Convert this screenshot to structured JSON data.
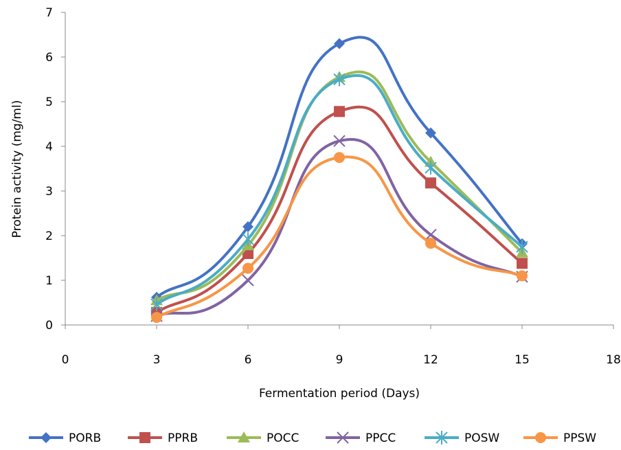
{
  "chart_data": {
    "type": "line",
    "title": "",
    "xlabel": "Fermentation period (Days)",
    "ylabel": "Protein activity (mg/ml)",
    "xlim": [
      0,
      18
    ],
    "ylim": [
      0,
      7
    ],
    "xticks": [
      0,
      3,
      6,
      9,
      12,
      15,
      18
    ],
    "yticks": [
      0,
      1,
      2,
      3,
      4,
      5,
      6,
      7
    ],
    "grid": false,
    "legend_position": "bottom",
    "smooth": true,
    "x": [
      3,
      6,
      9,
      12,
      15
    ],
    "series": [
      {
        "name": "PORB",
        "color": "#4472c4",
        "marker": "diamond",
        "values": [
          0.62,
          2.2,
          6.3,
          4.3,
          1.82
        ]
      },
      {
        "name": "PPRB",
        "color": "#c0504d",
        "marker": "square",
        "values": [
          0.28,
          1.6,
          4.78,
          3.18,
          1.38
        ]
      },
      {
        "name": "POCC",
        "color": "#9bbb59",
        "marker": "triangle",
        "values": [
          0.55,
          1.78,
          5.55,
          3.65,
          1.62
        ]
      },
      {
        "name": "PPCC",
        "color": "#8064a2",
        "marker": "x",
        "values": [
          0.2,
          1.0,
          4.12,
          2.02,
          1.08
        ]
      },
      {
        "name": "POSW",
        "color": "#4bacc6",
        "marker": "star",
        "values": [
          0.46,
          1.92,
          5.5,
          3.52,
          1.75
        ]
      },
      {
        "name": "PPSW",
        "color": "#f79646",
        "marker": "circle",
        "values": [
          0.17,
          1.27,
          3.75,
          1.83,
          1.1
        ]
      }
    ]
  }
}
